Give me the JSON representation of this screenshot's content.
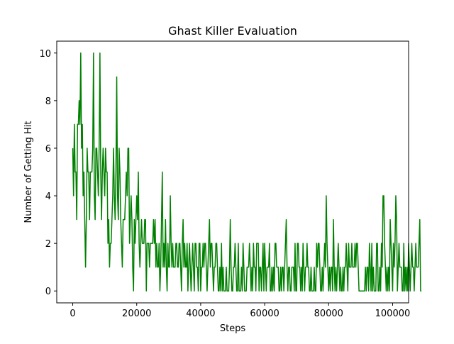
{
  "chart_data": {
    "type": "line",
    "title": "Ghast Killer Evaluation",
    "xlabel": "Steps",
    "ylabel": "Number of Getting Hit",
    "xlim": [
      -5000,
      105000
    ],
    "ylim": [
      -0.5,
      10.5
    ],
    "x_ticks": [
      0,
      20000,
      40000,
      60000,
      80000,
      100000
    ],
    "y_ticks": [
      0,
      2,
      4,
      6,
      8,
      10
    ],
    "grid": false,
    "line_color": "#008000",
    "x_start": 0,
    "x_step": 250,
    "series": [
      {
        "values": [
          6,
          4,
          7,
          5,
          5,
          3,
          7,
          7,
          8,
          7,
          10,
          6,
          7,
          4,
          5,
          3,
          1,
          3,
          6,
          5,
          5,
          3,
          5,
          5,
          5,
          6,
          10,
          4,
          3,
          6,
          6,
          5,
          4,
          6,
          10,
          5,
          3,
          5,
          6,
          5,
          4,
          6,
          5,
          5,
          2,
          3,
          1,
          2,
          2,
          3,
          4,
          6,
          4,
          3,
          5,
          9,
          4,
          3,
          6,
          5,
          3,
          2,
          1,
          3,
          3,
          3,
          4,
          5,
          4,
          6,
          6,
          2,
          3,
          4,
          3,
          1,
          0,
          3,
          2,
          3,
          4,
          3,
          5,
          2,
          1,
          2,
          3,
          2,
          2,
          2,
          3,
          3,
          0,
          2,
          2,
          2,
          1,
          2,
          2,
          2,
          2,
          3,
          2,
          3,
          1,
          2,
          1,
          1,
          2,
          0,
          1,
          3,
          5,
          1,
          2,
          1,
          3,
          1,
          0,
          2,
          1,
          1,
          4,
          2,
          1,
          2,
          1,
          1,
          1,
          2,
          2,
          1,
          1,
          2,
          2,
          1,
          0,
          2,
          3,
          1,
          2,
          1,
          1,
          2,
          0,
          1,
          2,
          1,
          0,
          1,
          2,
          1,
          0,
          2,
          2,
          1,
          1,
          0,
          2,
          2,
          0,
          1,
          1,
          2,
          1,
          2,
          2,
          1,
          0,
          1,
          2,
          3,
          1,
          2,
          2,
          1,
          0,
          1,
          1,
          2,
          2,
          1,
          0,
          0,
          1,
          0,
          2,
          0,
          1,
          0,
          0,
          0,
          1,
          0,
          0,
          0,
          1,
          3,
          1,
          0,
          0,
          1,
          1,
          2,
          1,
          0,
          0,
          2,
          0,
          0,
          0,
          1,
          0,
          2,
          1,
          0,
          0,
          0,
          1,
          1,
          1,
          2,
          1,
          0,
          1,
          0,
          2,
          1,
          1,
          0,
          2,
          2,
          2,
          0,
          1,
          1,
          0,
          1,
          2,
          0,
          2,
          1,
          0,
          1,
          1,
          1,
          2,
          0,
          0,
          1,
          0,
          1,
          0,
          2,
          2,
          1,
          1,
          1,
          0,
          0,
          1,
          0,
          1,
          1,
          0,
          1,
          2,
          3,
          1,
          0,
          1,
          1,
          0,
          0,
          1,
          1,
          1,
          0,
          2,
          0,
          0,
          2,
          2,
          1,
          1,
          0,
          1,
          0,
          2,
          1,
          0,
          1,
          1,
          2,
          1,
          1,
          0,
          0,
          1,
          0,
          0,
          0,
          1,
          0,
          0,
          2,
          1,
          2,
          2,
          1,
          0,
          0,
          1,
          0,
          1,
          2,
          1,
          4,
          2,
          1,
          0,
          1,
          0,
          1,
          1,
          0,
          3,
          1,
          0,
          1,
          0,
          1,
          2,
          1,
          0,
          1,
          0,
          0,
          1,
          0,
          1,
          1,
          2,
          1,
          0,
          2,
          1,
          1,
          1,
          2,
          1,
          1,
          1,
          2,
          1,
          2,
          2,
          1,
          0,
          0,
          0,
          0,
          0,
          0,
          0,
          0,
          1,
          0,
          1,
          1,
          0,
          2,
          1,
          0,
          2,
          0,
          1,
          0,
          0,
          0,
          2,
          2,
          0,
          0,
          1,
          0,
          2,
          1,
          4,
          4,
          2,
          1,
          0,
          1,
          0,
          1,
          0,
          3,
          2,
          1,
          0,
          2,
          1,
          2,
          4,
          3,
          0,
          1,
          2,
          1,
          1,
          1,
          0,
          0,
          2,
          0,
          1,
          0,
          1,
          0,
          2,
          1,
          0,
          1,
          2,
          1,
          1,
          0,
          1,
          2,
          1,
          1,
          1,
          2,
          3,
          0,
          0
        ]
      }
    ]
  }
}
